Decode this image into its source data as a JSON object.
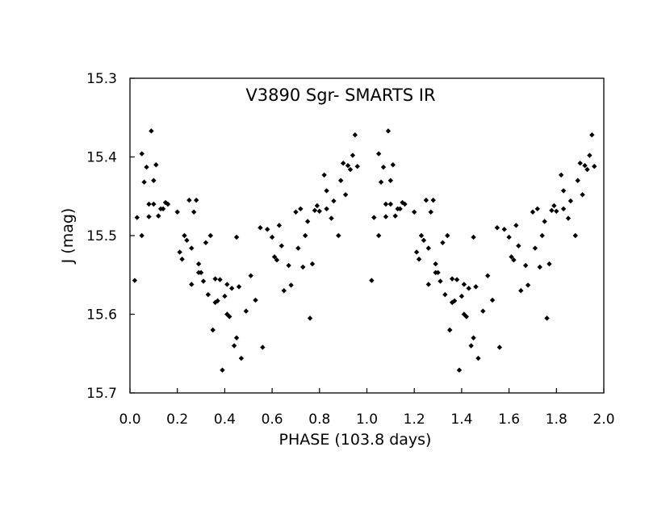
{
  "chart_data": {
    "type": "scatter",
    "title": "V3890 Sgr- SMARTS IR",
    "xlabel": "PHASE (103.8 days)",
    "ylabel": "J (mag)",
    "xlim": [
      0.0,
      2.0
    ],
    "ylim": [
      15.3,
      15.7
    ],
    "y_inverted": true,
    "grid": false,
    "legend": "none",
    "x_ticks": [
      0.0,
      0.2,
      0.4,
      0.6,
      0.8,
      1.0,
      1.2,
      1.4,
      1.6,
      1.8,
      2.0
    ],
    "x_tick_labels": [
      "0.0",
      "0.2",
      "0.4",
      "0.6",
      "0.8",
      "1.0",
      "1.2",
      "1.4",
      "1.6",
      "1.8",
      "2.0"
    ],
    "y_ticks": [
      15.3,
      15.4,
      15.5,
      15.6,
      15.7
    ],
    "y_tick_labels": [
      "15.3",
      "15.4",
      "15.5",
      "15.6",
      "15.7"
    ],
    "marker_color": "#000000",
    "marker": "diamond",
    "series": [
      {
        "x": [
          0.02,
          0.03,
          0.05,
          0.05,
          0.06,
          0.07,
          0.08,
          0.08,
          0.09,
          0.1,
          0.1,
          0.11,
          0.12,
          0.13,
          0.14,
          0.15,
          0.16,
          0.2,
          0.21,
          0.22,
          0.23,
          0.24,
          0.25,
          0.26,
          0.26,
          0.27,
          0.28,
          0.29,
          0.29,
          0.3,
          0.31,
          0.32,
          0.33,
          0.34,
          0.35,
          0.36,
          0.36,
          0.37,
          0.38,
          0.39,
          0.4,
          0.41,
          0.41,
          0.42,
          0.43,
          0.44,
          0.45,
          0.45,
          0.46,
          0.47,
          0.49,
          0.51,
          0.53,
          0.55,
          0.56,
          0.58,
          0.6,
          0.61,
          0.62,
          0.63,
          0.64,
          0.65,
          0.67,
          0.68,
          0.7,
          0.71,
          0.72,
          0.73,
          0.74,
          0.75,
          0.76,
          0.77,
          0.78,
          0.79,
          0.8,
          0.82,
          0.83,
          0.83,
          0.85,
          0.86,
          0.88,
          0.89,
          0.9,
          0.91,
          0.92,
          0.93,
          0.94,
          0.95,
          0.96
        ],
        "y": [
          15.557,
          15.477,
          15.396,
          15.5,
          15.432,
          15.413,
          15.476,
          15.46,
          15.367,
          15.43,
          15.46,
          15.41,
          15.475,
          15.466,
          15.466,
          15.458,
          15.46,
          15.47,
          15.521,
          15.53,
          15.5,
          15.506,
          15.455,
          15.516,
          15.562,
          15.47,
          15.455,
          15.536,
          15.547,
          15.547,
          15.558,
          15.509,
          15.575,
          15.5,
          15.62,
          15.555,
          15.585,
          15.583,
          15.556,
          15.671,
          15.577,
          15.562,
          15.6,
          15.603,
          15.567,
          15.64,
          15.63,
          15.502,
          15.565,
          15.656,
          15.596,
          15.551,
          15.582,
          15.49,
          15.642,
          15.492,
          15.502,
          15.527,
          15.531,
          15.487,
          15.513,
          15.57,
          15.538,
          15.563,
          15.47,
          15.516,
          15.466,
          15.54,
          15.5,
          15.482,
          15.605,
          15.536,
          15.468,
          15.462,
          15.469,
          15.423,
          15.466,
          15.443,
          15.478,
          15.456,
          15.5,
          15.43,
          15.408,
          15.448,
          15.411,
          15.416,
          15.398,
          15.372,
          15.412
        ]
      }
    ]
  }
}
